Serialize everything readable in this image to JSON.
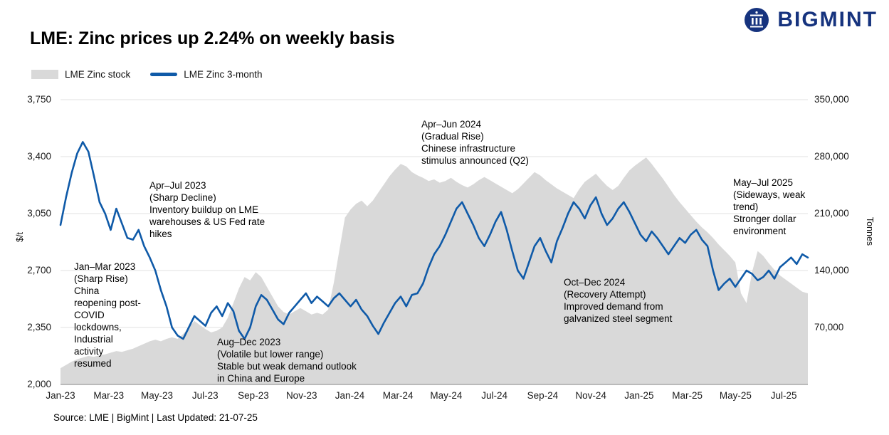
{
  "header": {
    "title": "LME: Zinc prices up 2.24% on weekly basis",
    "brand": "BIGMINT",
    "brand_color": "#16337e"
  },
  "legend": [
    {
      "label": "LME Zinc stock",
      "color": "#d9d9d9",
      "type": "area"
    },
    {
      "label": "LME Zinc 3-month",
      "color": "#0f5aa8",
      "type": "line"
    }
  ],
  "source": "Source: LME | BigMint | Last Updated: 21-07-25",
  "chart_data": {
    "type": "line",
    "title": "LME: Zinc prices up 2.24% on weekly basis",
    "x_ticks": [
      "Jan-23",
      "Mar-23",
      "May-23",
      "Jul-23",
      "Sep-23",
      "Nov-23",
      "Jan-24",
      "Mar-24",
      "May-24",
      "Jul-24",
      "Sep-24",
      "Nov-24",
      "Jan-25",
      "Mar-25",
      "May-25",
      "Jul-25"
    ],
    "x_range": "Jan-2023 to Jul-2025, weekly points",
    "grid": true,
    "legend_position": "top-left",
    "left_axis": {
      "label": "$/t",
      "min": 2000,
      "max": 3750,
      "ticks": [
        "3,750",
        "3,400",
        "3,050",
        "2,700",
        "2,350",
        "2,000"
      ]
    },
    "right_axis": {
      "label": "Tonnes",
      "min": 0,
      "max": 350000,
      "ticks": [
        "350,000",
        "280,000",
        "210,000",
        "140,000",
        "70,000"
      ]
    },
    "series": [
      {
        "name": "LME Zinc stock",
        "type": "area",
        "axis": "right",
        "color": "#d9d9d9",
        "values": [
          20000,
          24000,
          28000,
          31000,
          33000,
          35000,
          34000,
          36000,
          37000,
          39000,
          41000,
          40000,
          42000,
          44000,
          47000,
          50000,
          53000,
          55000,
          53000,
          56000,
          58000,
          56000,
          62000,
          70000,
          78000,
          73000,
          68000,
          64000,
          66000,
          70000,
          82000,
          100000,
          118000,
          132000,
          128000,
          138000,
          132000,
          120000,
          108000,
          96000,
          89000,
          86000,
          90000,
          94000,
          90000,
          86000,
          88000,
          86000,
          92000,
          125000,
          165000,
          205000,
          215000,
          222000,
          226000,
          219000,
          226000,
          236000,
          246000,
          256000,
          264000,
          271000,
          268000,
          261000,
          257000,
          254000,
          250000,
          252000,
          248000,
          250000,
          254000,
          249000,
          245000,
          242000,
          246000,
          251000,
          255000,
          251000,
          247000,
          243000,
          239000,
          235000,
          240000,
          247000,
          254000,
          261000,
          257000,
          251000,
          246000,
          241000,
          237000,
          233000,
          229000,
          240000,
          249000,
          254000,
          259000,
          251000,
          244000,
          239000,
          244000,
          254000,
          263000,
          269000,
          274000,
          279000,
          271000,
          262000,
          253000,
          243000,
          233000,
          224000,
          216000,
          208000,
          200000,
          193000,
          187000,
          180000,
          172000,
          165000,
          158000,
          150000,
          112000,
          100000,
          138000,
          164000,
          158000,
          149000,
          141000,
          134000,
          129000,
          124000,
          119000,
          114000,
          112000
        ]
      },
      {
        "name": "LME Zinc 3-month",
        "type": "line",
        "axis": "left",
        "color": "#0f5aa8",
        "values": [
          2980,
          3150,
          3300,
          3420,
          3490,
          3430,
          3280,
          3120,
          3050,
          2950,
          3080,
          2990,
          2900,
          2890,
          2950,
          2850,
          2780,
          2700,
          2580,
          2480,
          2350,
          2300,
          2280,
          2350,
          2420,
          2390,
          2360,
          2440,
          2480,
          2420,
          2500,
          2450,
          2330,
          2280,
          2350,
          2480,
          2550,
          2520,
          2460,
          2400,
          2370,
          2440,
          2480,
          2520,
          2560,
          2500,
          2540,
          2510,
          2480,
          2530,
          2560,
          2520,
          2480,
          2520,
          2460,
          2420,
          2360,
          2310,
          2380,
          2440,
          2500,
          2540,
          2480,
          2550,
          2560,
          2620,
          2720,
          2800,
          2850,
          2920,
          3000,
          3080,
          3120,
          3050,
          2980,
          2900,
          2850,
          2920,
          3000,
          3060,
          2950,
          2820,
          2700,
          2650,
          2750,
          2850,
          2900,
          2820,
          2750,
          2880,
          2960,
          3050,
          3120,
          3080,
          3020,
          3100,
          3150,
          3050,
          2980,
          3020,
          3080,
          3120,
          3060,
          2990,
          2920,
          2880,
          2940,
          2900,
          2850,
          2800,
          2850,
          2900,
          2870,
          2920,
          2950,
          2890,
          2850,
          2700,
          2580,
          2620,
          2650,
          2600,
          2650,
          2700,
          2680,
          2640,
          2660,
          2700,
          2650,
          2720,
          2750,
          2780,
          2740,
          2800,
          2780
        ]
      }
    ],
    "annotations": [
      {
        "id": "jan-mar-2023",
        "text": "Jan–Mar 2023\n(Sharp Rise)\nChina\nreopening post-\nCOVID\nlockdowns,\nIndustrial\nactivity\nresumed"
      },
      {
        "id": "apr-jul-2023",
        "text": "Apr–Jul 2023\n(Sharp Decline)\nInventory buildup on LME\nwarehouses & US Fed rate\nhikes"
      },
      {
        "id": "aug-dec-2023",
        "text": "Aug–Dec 2023\n(Volatile but lower range)\nStable but weak demand outlook\nin China and Europe"
      },
      {
        "id": "apr-jun-2024",
        "text": "Apr–Jun 2024\n(Gradual Rise)\nChinese infrastructure\nstimulus announced (Q2)"
      },
      {
        "id": "oct-dec-2024",
        "text": "Oct–Dec 2024\n(Recovery Attempt)\nImproved demand from\ngalvanized steel segment"
      },
      {
        "id": "may-jul-2025",
        "text": "May–Jul 2025\n(Sideways, weak\ntrend)\nStronger dollar\nenvironment"
      }
    ]
  }
}
